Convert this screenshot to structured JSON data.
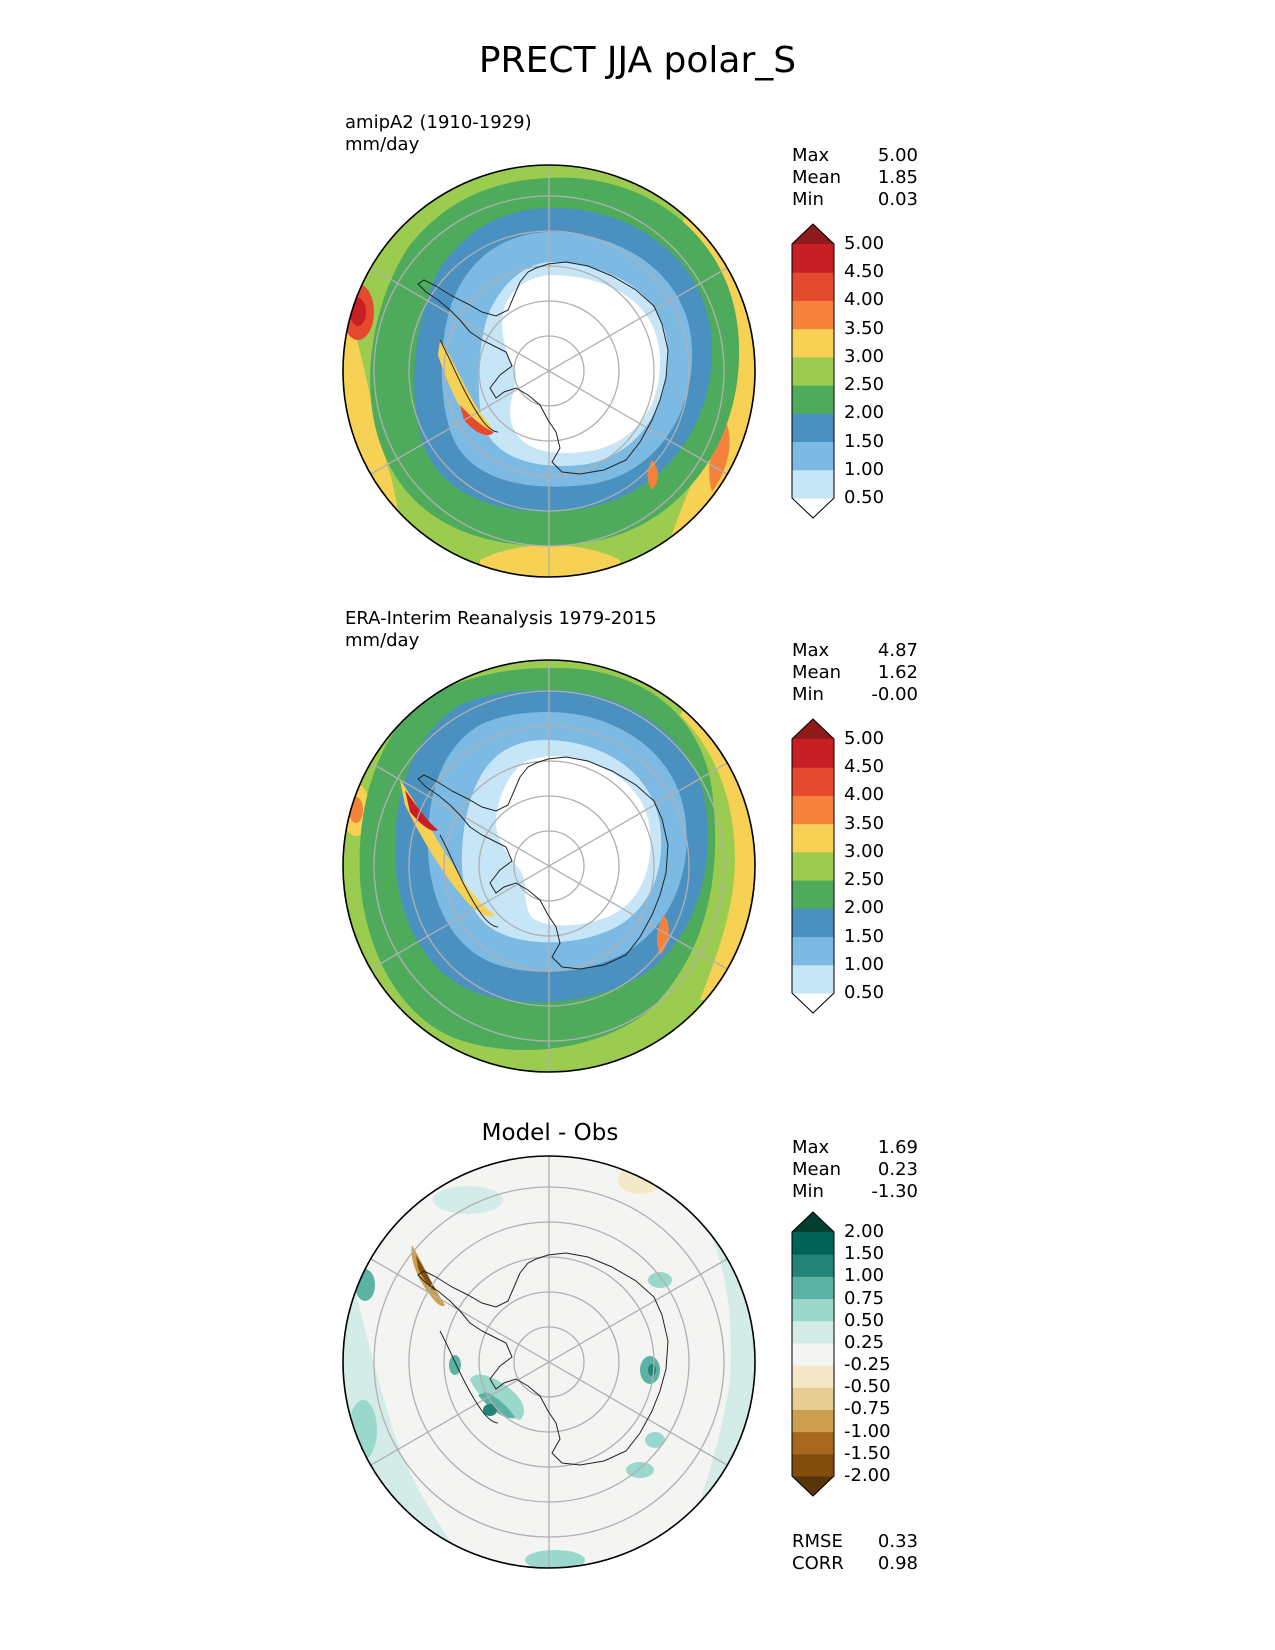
{
  "figure": {
    "title": "PRECT JJA polar_S"
  },
  "panels": [
    {
      "id": "test",
      "title_line1": "amipA2 (1910-1929)",
      "title_line2": "mm/day",
      "stats": [
        {
          "label": "Max",
          "value": "5.00"
        },
        {
          "label": "Mean",
          "value": "1.85"
        },
        {
          "label": "Min",
          "value": "0.03"
        }
      ]
    },
    {
      "id": "reference",
      "title_line1": "ERA-Interim Reanalysis 1979-2015",
      "title_line2": "mm/day",
      "stats": [
        {
          "label": "Max",
          "value": "4.87"
        },
        {
          "label": "Mean",
          "value": "1.62"
        },
        {
          "label": "Min",
          "value": "-0.00"
        }
      ]
    },
    {
      "id": "difference",
      "center_title": "Model - Obs",
      "stats": [
        {
          "label": "Max",
          "value": "1.69"
        },
        {
          "label": "Mean",
          "value": "0.23"
        },
        {
          "label": "Min",
          "value": "-1.30"
        }
      ],
      "metrics": [
        {
          "label": "RMSE",
          "value": "0.33"
        },
        {
          "label": "CORR",
          "value": "0.98"
        }
      ]
    }
  ],
  "colorbars": {
    "precip": {
      "labels": [
        "5.00",
        "4.50",
        "4.00",
        "3.50",
        "3.00",
        "2.50",
        "2.00",
        "1.50",
        "1.00",
        "0.50"
      ],
      "colors": [
        "#ffffff",
        "#c6e6f7",
        "#7dbae3",
        "#4a91c2",
        "#4fab5c",
        "#9ccc4f",
        "#f6d154",
        "#f5823a",
        "#e54a2e",
        "#c71f24",
        "#8f1a1c"
      ]
    },
    "diff": {
      "labels": [
        "2.00",
        "1.50",
        "1.00",
        "0.75",
        "0.50",
        "0.25",
        "-0.25",
        "-0.50",
        "-0.75",
        "-1.00",
        "-1.50",
        "-2.00"
      ],
      "colors": [
        "#573506",
        "#824c0b",
        "#a8671e",
        "#cc9e4f",
        "#e7cd91",
        "#f5e8c8",
        "#f4f4f2",
        "#d4ece7",
        "#9ad8cb",
        "#5ab3a3",
        "#238377",
        "#016356",
        "#033d30"
      ]
    }
  }
}
